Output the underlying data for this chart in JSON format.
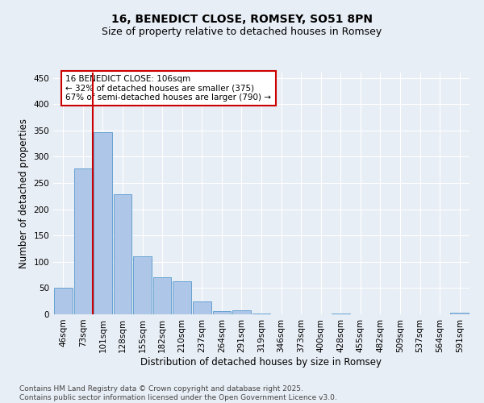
{
  "title": "16, BENEDICT CLOSE, ROMSEY, SO51 8PN",
  "subtitle": "Size of property relative to detached houses in Romsey",
  "xlabel": "Distribution of detached houses by size in Romsey",
  "ylabel": "Number of detached properties",
  "bar_labels": [
    "46sqm",
    "73sqm",
    "101sqm",
    "128sqm",
    "155sqm",
    "182sqm",
    "210sqm",
    "237sqm",
    "264sqm",
    "291sqm",
    "319sqm",
    "346sqm",
    "373sqm",
    "400sqm",
    "428sqm",
    "455sqm",
    "482sqm",
    "509sqm",
    "537sqm",
    "564sqm",
    "591sqm"
  ],
  "bar_values": [
    51,
    278,
    346,
    228,
    110,
    70,
    63,
    24,
    6,
    8,
    2,
    0,
    0,
    0,
    1,
    0,
    0,
    0,
    0,
    0,
    3
  ],
  "bar_color": "#aec6e8",
  "bar_edge_color": "#5599cc",
  "vline_x_index": 2,
  "vline_color": "#cc0000",
  "annotation_text": "16 BENEDICT CLOSE: 106sqm\n← 32% of detached houses are smaller (375)\n67% of semi-detached houses are larger (790) →",
  "annotation_box_facecolor": "#ffffff",
  "annotation_box_edgecolor": "#cc0000",
  "ylim": [
    0,
    460
  ],
  "yticks": [
    0,
    50,
    100,
    150,
    200,
    250,
    300,
    350,
    400,
    450
  ],
  "bg_color": "#e8eef5",
  "footer_text": "Contains HM Land Registry data © Crown copyright and database right 2025.\nContains public sector information licensed under the Open Government Licence v3.0.",
  "title_fontsize": 10,
  "subtitle_fontsize": 9,
  "axis_label_fontsize": 8.5,
  "tick_fontsize": 7.5,
  "annotation_fontsize": 7.5,
  "footer_fontsize": 6.5
}
